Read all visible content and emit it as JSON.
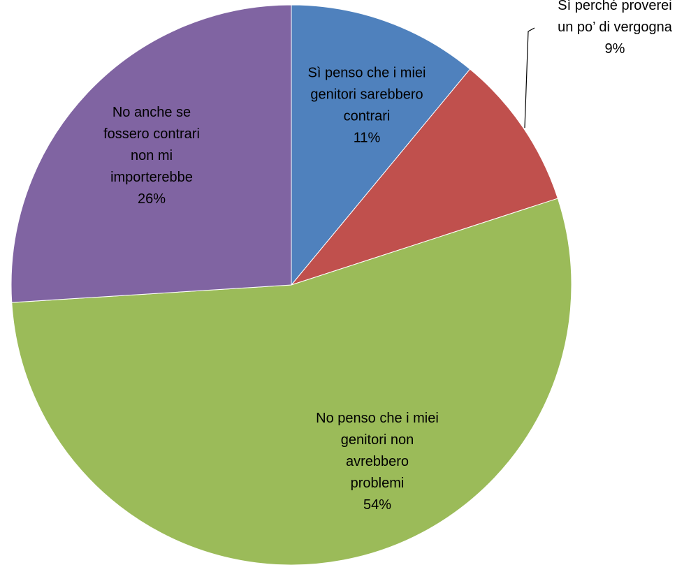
{
  "chart_data": {
    "type": "pie",
    "title": "",
    "start_angle_deg": 0,
    "direction": "clockwise",
    "slices": [
      {
        "label": "Sì penso che i miei genitori sarebbero contrari",
        "label_lines": [
          "Sì penso che i miei",
          "genitori sarebbero",
          "contrari"
        ],
        "value": 11,
        "percent_label": "11%",
        "color": "#4F81BD"
      },
      {
        "label": "Sì perché proverei un po’ di vergogna",
        "label_lines": [
          "Sì perché proverei",
          "un po’ di vergogna"
        ],
        "value": 9,
        "percent_label": "9%",
        "color": "#C0504D"
      },
      {
        "label": "No penso che i miei genitori non avrebbero problemi",
        "label_lines": [
          "No penso che i miei",
          "genitori non",
          "avrebbero",
          "problemi"
        ],
        "value": 54,
        "percent_label": "54%",
        "color": "#9BBB59"
      },
      {
        "label": "No anche se fossero contrari non mi importerebbe",
        "label_lines": [
          "No anche se",
          "fossero contrari",
          "non mi",
          "importerebbe"
        ],
        "value": 26,
        "percent_label": "26%",
        "color": "#8064A2"
      }
    ]
  }
}
